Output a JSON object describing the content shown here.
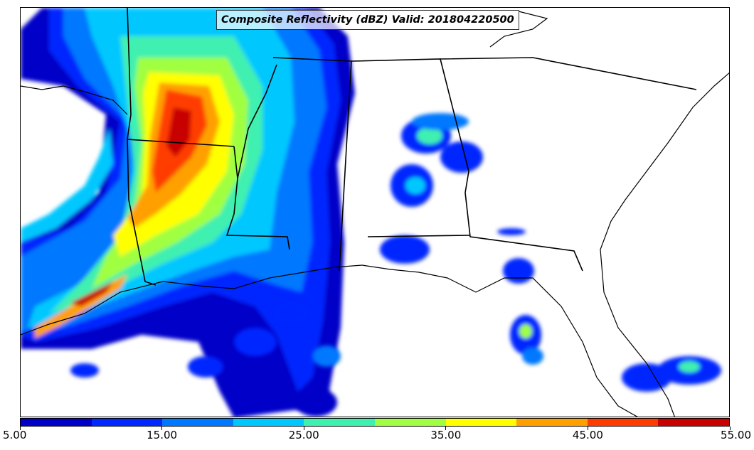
{
  "title": "Composite Reflectivity (dBZ) Valid: 201804220500",
  "colorbar": {
    "colors": [
      "#0000c8",
      "#0028ff",
      "#0078ff",
      "#00c8ff",
      "#40f0b0",
      "#a0ff40",
      "#ffff00",
      "#ffa000",
      "#ff3c00",
      "#c80000"
    ],
    "tick_labels": [
      "5.00",
      "15.00",
      "25.00",
      "35.00",
      "45.00",
      "55.00"
    ],
    "tick_values": [
      5,
      15,
      25,
      35,
      45,
      55
    ],
    "range": [
      5,
      55
    ]
  },
  "map": {
    "field": "composite reflectivity",
    "units": "dBZ"
  }
}
